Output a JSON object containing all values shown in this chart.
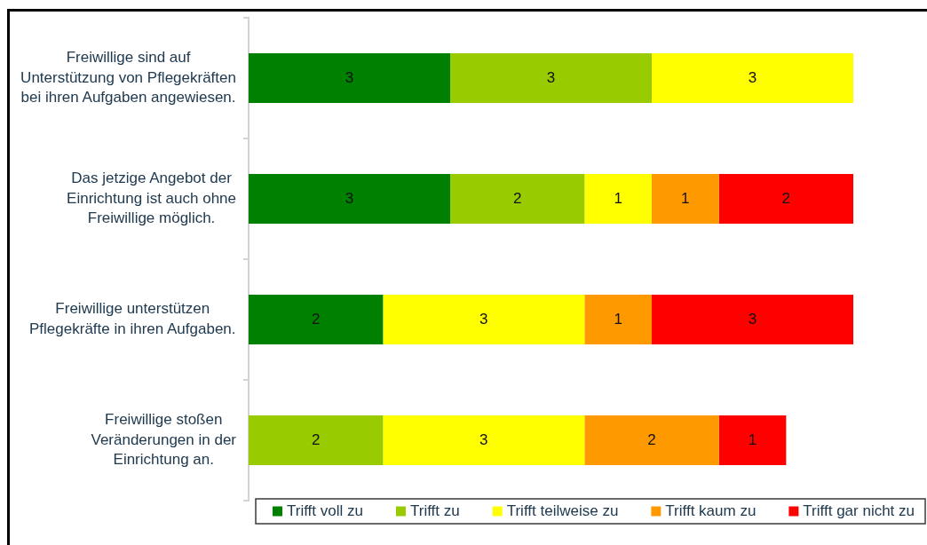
{
  "chart_data": {
    "type": "bar",
    "orientation": "horizontal",
    "stacked": true,
    "categories": [
      "Freiwillige sind auf\nUnterstützung von Pflegekräften\nbei ihren Aufgaben angewiesen.",
      "Das jetzige Angebot der\nEinrichtung ist auch ohne\nFreiwillige möglich.",
      "Freiwillige unterstützen\nPflegekräfte in ihren Aufgaben.",
      "Freiwillige stoßen\nVeränderungen in der\nEinrichtung an."
    ],
    "series": [
      {
        "name": "Trifft voll zu",
        "color": "#008000",
        "values": [
          3,
          3,
          2,
          null
        ]
      },
      {
        "name": "Trifft zu",
        "color": "#99cc00",
        "values": [
          3,
          2,
          null,
          2
        ]
      },
      {
        "name": "Trifft teilweise zu",
        "color": "#ffff00",
        "values": [
          3,
          1,
          3,
          3
        ]
      },
      {
        "name": "Trifft kaum zu",
        "color": "#ff9900",
        "values": [
          null,
          1,
          1,
          2
        ]
      },
      {
        "name": "Trifft gar nicht zu",
        "color": "#ff0000",
        "values": [
          null,
          2,
          3,
          1
        ]
      }
    ],
    "data_labels": true,
    "legend": "bottom",
    "tick_labels": "y"
  }
}
